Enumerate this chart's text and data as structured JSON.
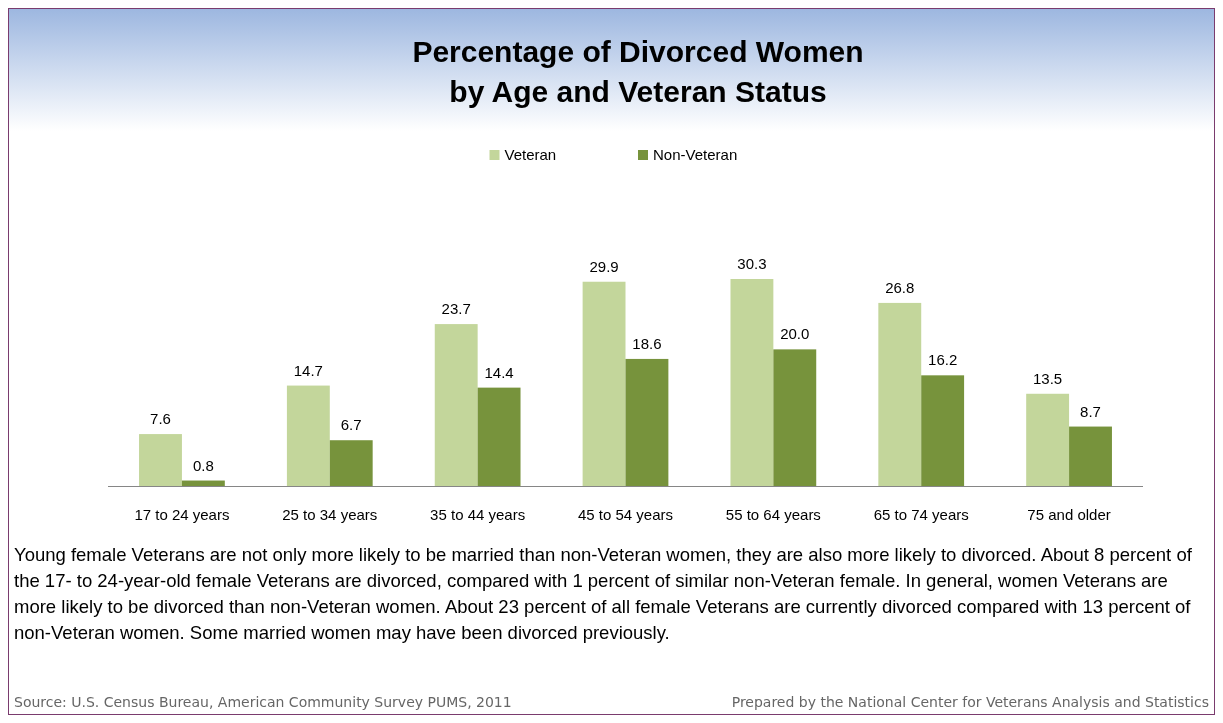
{
  "chart_data": {
    "type": "bar",
    "title": "Percentage of Divorced Women\nby Age and Veteran Status",
    "categories": [
      "17 to 24 years",
      "25 to 34 years",
      "35 to 44 years",
      "45 to 54 years",
      "55 to 64 years",
      "65 to 74 years",
      "75 and older"
    ],
    "series": [
      {
        "name": "Veteran",
        "color": "#c3d69b",
        "values": [
          7.6,
          14.7,
          23.7,
          29.9,
          30.3,
          26.8,
          13.5
        ],
        "value_labels": [
          "7.6",
          "14.7",
          "23.7",
          "29.9",
          "30.3",
          "26.8",
          "13.5"
        ]
      },
      {
        "name": "Non-Veteran",
        "color": "#77933c",
        "values": [
          0.8,
          6.7,
          14.4,
          18.6,
          20.0,
          16.2,
          8.7
        ],
        "value_labels": [
          "0.8",
          "6.7",
          "14.4",
          "18.6",
          "20.0",
          "16.2",
          "8.7"
        ]
      }
    ],
    "legend": "top",
    "annotations": [
      "Young female Veterans are not only more likely to be married than non-Veteran women, they are also more likely to divorced. About 8 percent of the 17- to 24-year-old female Veterans are divorced, compared with 1 percent of similar non-Veteran female. In general, women Veterans are more likely to be divorced than non-Veteran women. About 23 percent of all female Veterans are currently divorced compared with 13 percent of non-Veteran women. Some married women may have been divorced previously.",
      "Source: U.S. Census Bureau, American Community Survey PUMS, 2011",
      "Prepared by the National Center for Veterans Analysis and Statistics"
    ]
  }
}
